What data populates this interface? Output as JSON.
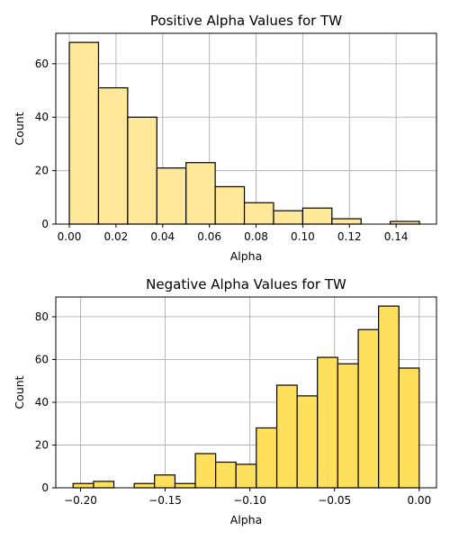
{
  "chart_data": [
    {
      "type": "bar",
      "title": "Positive Alpha Values for TW",
      "xlabel": "Alpha",
      "ylabel": "Count",
      "xlim": [
        -0.0058,
        0.1573
      ],
      "ylim": [
        0,
        71.4
      ],
      "xticks": [
        0.0,
        0.02,
        0.04,
        0.06,
        0.08,
        0.1,
        0.12,
        0.14
      ],
      "xtick_labels": [
        "0.00",
        "0.02",
        "0.04",
        "0.06",
        "0.08",
        "0.10",
        "0.12",
        "0.14"
      ],
      "yticks": [
        0,
        20,
        40,
        60
      ],
      "ytick_labels": [
        "0",
        "20",
        "40",
        "60"
      ],
      "grid": true,
      "bar_color": "#ffe899",
      "bins": [
        {
          "x0": 0.0,
          "x1": 0.0125,
          "count": 68
        },
        {
          "x0": 0.0125,
          "x1": 0.025,
          "count": 51
        },
        {
          "x0": 0.025,
          "x1": 0.0375,
          "count": 40
        },
        {
          "x0": 0.0375,
          "x1": 0.05,
          "count": 21
        },
        {
          "x0": 0.05,
          "x1": 0.0625,
          "count": 23
        },
        {
          "x0": 0.0625,
          "x1": 0.075,
          "count": 14
        },
        {
          "x0": 0.075,
          "x1": 0.0875,
          "count": 8
        },
        {
          "x0": 0.0875,
          "x1": 0.1,
          "count": 5
        },
        {
          "x0": 0.1,
          "x1": 0.1125,
          "count": 6
        },
        {
          "x0": 0.1125,
          "x1": 0.125,
          "count": 2
        },
        {
          "x0": 0.125,
          "x1": 0.1375,
          "count": 0
        },
        {
          "x0": 0.1375,
          "x1": 0.15,
          "count": 1
        }
      ]
    },
    {
      "type": "bar",
      "title": "Negative Alpha Values for TW",
      "xlabel": "Alpha",
      "ylabel": "Count",
      "xlim": [
        -0.2146,
        0.0102
      ],
      "ylim": [
        0,
        89.25
      ],
      "xticks": [
        -0.2,
        -0.15,
        -0.1,
        -0.05,
        0.0
      ],
      "xtick_labels": [
        "−0.20",
        "−0.15",
        "−0.10",
        "−0.05",
        "0.00"
      ],
      "yticks": [
        0,
        20,
        40,
        60,
        80
      ],
      "ytick_labels": [
        "0",
        "20",
        "40",
        "60",
        "80"
      ],
      "grid": true,
      "bar_color": "#ffe05c",
      "bins": [
        {
          "x0": -0.2044,
          "x1": -0.1923,
          "count": 2
        },
        {
          "x0": -0.1923,
          "x1": -0.1803,
          "count": 3
        },
        {
          "x0": -0.1803,
          "x1": -0.1683,
          "count": 0
        },
        {
          "x0": -0.1683,
          "x1": -0.1563,
          "count": 2
        },
        {
          "x0": -0.1563,
          "x1": -0.1442,
          "count": 6
        },
        {
          "x0": -0.1442,
          "x1": -0.1322,
          "count": 2
        },
        {
          "x0": -0.1322,
          "x1": -0.1202,
          "count": 16
        },
        {
          "x0": -0.1202,
          "x1": -0.1082,
          "count": 12
        },
        {
          "x0": -0.1082,
          "x1": -0.0962,
          "count": 11
        },
        {
          "x0": -0.0962,
          "x1": -0.0841,
          "count": 28
        },
        {
          "x0": -0.0841,
          "x1": -0.0721,
          "count": 48
        },
        {
          "x0": -0.0721,
          "x1": -0.0601,
          "count": 43
        },
        {
          "x0": -0.0601,
          "x1": -0.0481,
          "count": 61
        },
        {
          "x0": -0.0481,
          "x1": -0.036,
          "count": 58
        },
        {
          "x0": -0.036,
          "x1": -0.024,
          "count": 74
        },
        {
          "x0": -0.024,
          "x1": -0.012,
          "count": 85
        },
        {
          "x0": -0.012,
          "x1": 0.0,
          "count": 56
        }
      ]
    }
  ]
}
